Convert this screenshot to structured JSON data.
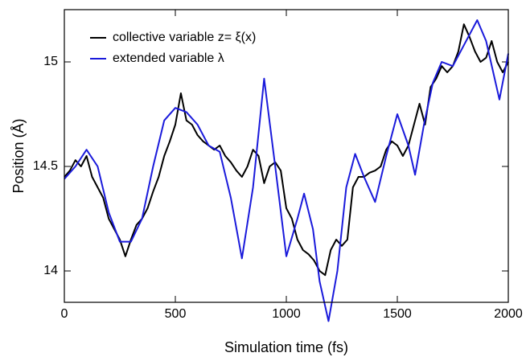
{
  "chart_data": {
    "type": "line",
    "xlabel": "Simulation time (fs)",
    "ylabel": "Position (Å)",
    "xlim": [
      0,
      2000
    ],
    "xticks": [
      0,
      500,
      1000,
      1500,
      2000
    ],
    "ylim": [
      13.85,
      15.25
    ],
    "yticks": [
      14,
      14.5,
      15
    ],
    "legend": "upper left",
    "series": [
      {
        "name": "collective variable z= ξ(x)",
        "color": "#000000",
        "x": [
          0,
          25,
          50,
          75,
          100,
          125,
          150,
          175,
          200,
          225,
          250,
          275,
          300,
          325,
          350,
          375,
          400,
          425,
          450,
          475,
          500,
          525,
          550,
          575,
          600,
          625,
          650,
          675,
          700,
          725,
          750,
          775,
          800,
          825,
          850,
          875,
          900,
          925,
          950,
          975,
          1000,
          1025,
          1050,
          1075,
          1100,
          1125,
          1150,
          1175,
          1200,
          1225,
          1250,
          1275,
          1300,
          1325,
          1350,
          1375,
          1400,
          1425,
          1450,
          1475,
          1500,
          1525,
          1550,
          1575,
          1600,
          1625,
          1650,
          1675,
          1700,
          1725,
          1750,
          1775,
          1800,
          1825,
          1850,
          1875,
          1900,
          1925,
          1950,
          1975,
          2000
        ],
        "values": [
          14.45,
          14.48,
          14.53,
          14.5,
          14.55,
          14.45,
          14.4,
          14.35,
          14.25,
          14.2,
          14.15,
          14.07,
          14.15,
          14.22,
          14.25,
          14.3,
          14.38,
          14.45,
          14.55,
          14.62,
          14.7,
          14.85,
          14.72,
          14.7,
          14.65,
          14.62,
          14.6,
          14.58,
          14.6,
          14.55,
          14.52,
          14.48,
          14.45,
          14.5,
          14.58,
          14.55,
          14.42,
          14.5,
          14.52,
          14.48,
          14.3,
          14.25,
          14.15,
          14.1,
          14.08,
          14.05,
          14.0,
          13.98,
          14.1,
          14.15,
          14.12,
          14.15,
          14.4,
          14.45,
          14.45,
          14.47,
          14.48,
          14.5,
          14.58,
          14.62,
          14.6,
          14.55,
          14.6,
          14.7,
          14.8,
          14.7,
          14.88,
          14.92,
          14.98,
          14.95,
          14.98,
          15.05,
          15.18,
          15.12,
          15.05,
          15.0,
          15.02,
          15.1,
          15.0,
          14.95,
          15.0
        ]
      },
      {
        "name": "extended variable λ",
        "color": "#1a1adb",
        "x": [
          0,
          50,
          100,
          150,
          200,
          250,
          300,
          350,
          400,
          450,
          500,
          550,
          600,
          650,
          700,
          750,
          800,
          850,
          900,
          950,
          1000,
          1050,
          1080,
          1120,
          1150,
          1190,
          1230,
          1270,
          1310,
          1350,
          1400,
          1450,
          1500,
          1550,
          1580,
          1620,
          1660,
          1700,
          1750,
          1800,
          1860,
          1900,
          1960,
          2000
        ],
        "values": [
          14.44,
          14.5,
          14.58,
          14.5,
          14.28,
          14.14,
          14.14,
          14.25,
          14.5,
          14.72,
          14.78,
          14.76,
          14.7,
          14.6,
          14.57,
          14.35,
          14.06,
          14.4,
          14.92,
          14.5,
          14.07,
          14.25,
          14.37,
          14.2,
          13.95,
          13.76,
          14.0,
          14.4,
          14.56,
          14.45,
          14.33,
          14.55,
          14.75,
          14.6,
          14.46,
          14.7,
          14.9,
          15.0,
          14.98,
          15.08,
          15.2,
          15.1,
          14.82,
          15.04
        ]
      }
    ]
  }
}
